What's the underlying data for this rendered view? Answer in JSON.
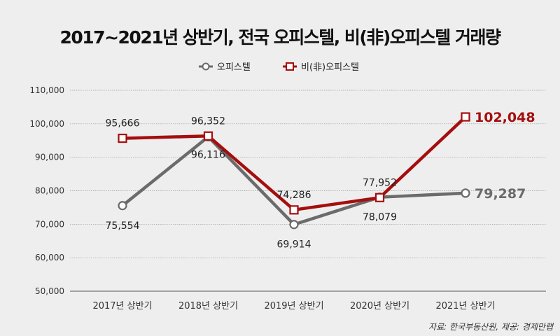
{
  "chart_data": {
    "type": "line",
    "title": "2017~2021년 상반기, 전국 오피스텔, 비(非)오피스텔 거래량",
    "categories": [
      "2017년 상반기",
      "2018년 상반기",
      "2019년 상반기",
      "2020년 상반기",
      "2021년 상반기"
    ],
    "ylim": [
      50000,
      110000
    ],
    "yticks": [
      50000,
      60000,
      70000,
      80000,
      90000,
      100000,
      110000
    ],
    "ytick_labels": [
      "50,000",
      "60,000",
      "70,000",
      "80,000",
      "90,000",
      "100,000",
      "110,000"
    ],
    "grid": true,
    "legend_position": "top-center",
    "series": [
      {
        "name": "오피스텔",
        "color": "#6b6b6b",
        "marker": "circle",
        "values": [
          75554,
          96116,
          69914,
          78079,
          79287
        ],
        "labels": [
          "75,554",
          "96,116",
          "69,914",
          "78,079",
          "79,287"
        ]
      },
      {
        "name": "비(非)오피스텔",
        "color": "#a50e0e",
        "marker": "square",
        "values": [
          95666,
          96352,
          74286,
          77952,
          102048
        ],
        "labels": [
          "95,666",
          "96,352",
          "74,286",
          "77,952",
          "102,048"
        ]
      }
    ],
    "source": "자료: 한국부동산원, 제공: 경제만랩"
  }
}
